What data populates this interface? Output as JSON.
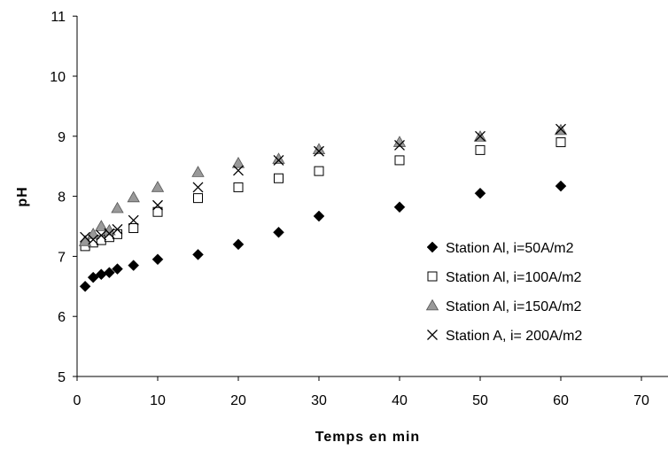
{
  "chart_data": {
    "type": "scatter",
    "xlabel": "Temps en min",
    "ylabel": "pH",
    "xlim": [
      0,
      70
    ],
    "ylim": [
      5,
      11
    ],
    "xticks": [
      "0",
      "10",
      "20",
      "30",
      "40",
      "50",
      "60",
      "70"
    ],
    "yticks": [
      "5",
      "6",
      "7",
      "8",
      "9",
      "10",
      "11"
    ],
    "grid": false,
    "legend_position": "bottom-right",
    "series": [
      {
        "name": "Station Al, i=50A/m2",
        "marker": "diamond",
        "color": "#000000",
        "x": [
          1,
          2,
          3,
          4,
          5,
          7,
          10,
          15,
          20,
          25,
          30,
          40,
          50,
          60
        ],
        "y": [
          6.5,
          6.65,
          6.7,
          6.73,
          6.79,
          6.85,
          6.95,
          7.03,
          7.2,
          7.4,
          7.67,
          7.82,
          8.05,
          8.17
        ]
      },
      {
        "name": "Station Al, i=100A/m2",
        "marker": "square-open",
        "color": "#000000",
        "x": [
          1,
          2,
          3,
          4,
          5,
          7,
          10,
          15,
          20,
          25,
          30,
          40,
          50,
          60
        ],
        "y": [
          7.17,
          7.23,
          7.27,
          7.32,
          7.37,
          7.47,
          7.74,
          7.97,
          8.15,
          8.3,
          8.42,
          8.6,
          8.77,
          8.9
        ]
      },
      {
        "name": "Station Al, i=150A/m2",
        "marker": "triangle",
        "color": "#999999",
        "x": [
          1,
          2,
          3,
          4,
          5,
          7,
          10,
          15,
          20,
          25,
          30,
          40,
          50,
          60
        ],
        "y": [
          7.25,
          7.37,
          7.5,
          7.43,
          7.8,
          7.98,
          8.15,
          8.4,
          8.55,
          8.62,
          8.78,
          8.9,
          8.99,
          9.1
        ]
      },
      {
        "name": "Station A, i= 200A/m2",
        "marker": "x",
        "color": "#000000",
        "x": [
          1,
          2,
          3,
          4,
          5,
          7,
          10,
          15,
          20,
          25,
          30,
          40,
          50,
          60
        ],
        "y": [
          7.32,
          7.28,
          7.35,
          7.38,
          7.45,
          7.6,
          7.85,
          8.15,
          8.43,
          8.6,
          8.75,
          8.85,
          9.0,
          9.12
        ]
      }
    ]
  }
}
